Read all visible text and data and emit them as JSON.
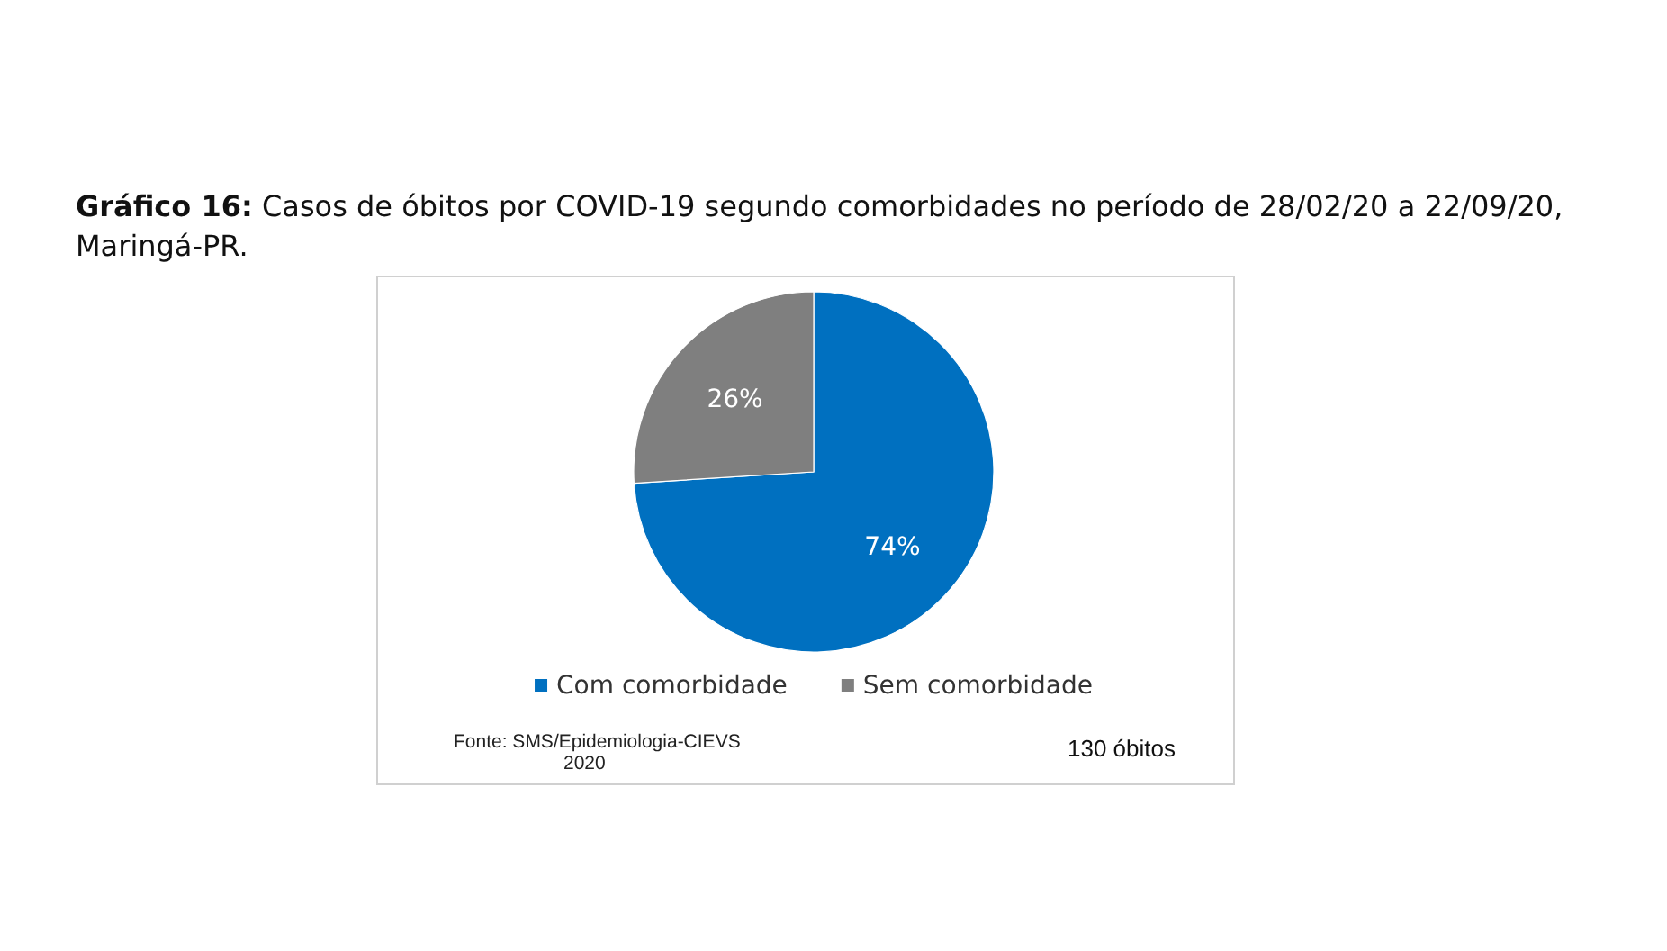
{
  "chart_data": {
    "type": "pie",
    "title": "Gráfico 16: Casos de óbitos por COVID-19 segundo comorbidades no período de 28/02/20 a 22/09/20, Maringá-PR.",
    "categories": [
      "Com comorbidade",
      "Sem comorbidade"
    ],
    "values": [
      74,
      26
    ],
    "colors": [
      "#0070c0",
      "#7f7f7f"
    ],
    "value_labels": [
      "74%",
      "26%"
    ],
    "legend": "bottom",
    "annotations": [
      "Fonte: SMS/Epidemiologia-CIEVS\n2020",
      "130 óbitos"
    ]
  }
}
